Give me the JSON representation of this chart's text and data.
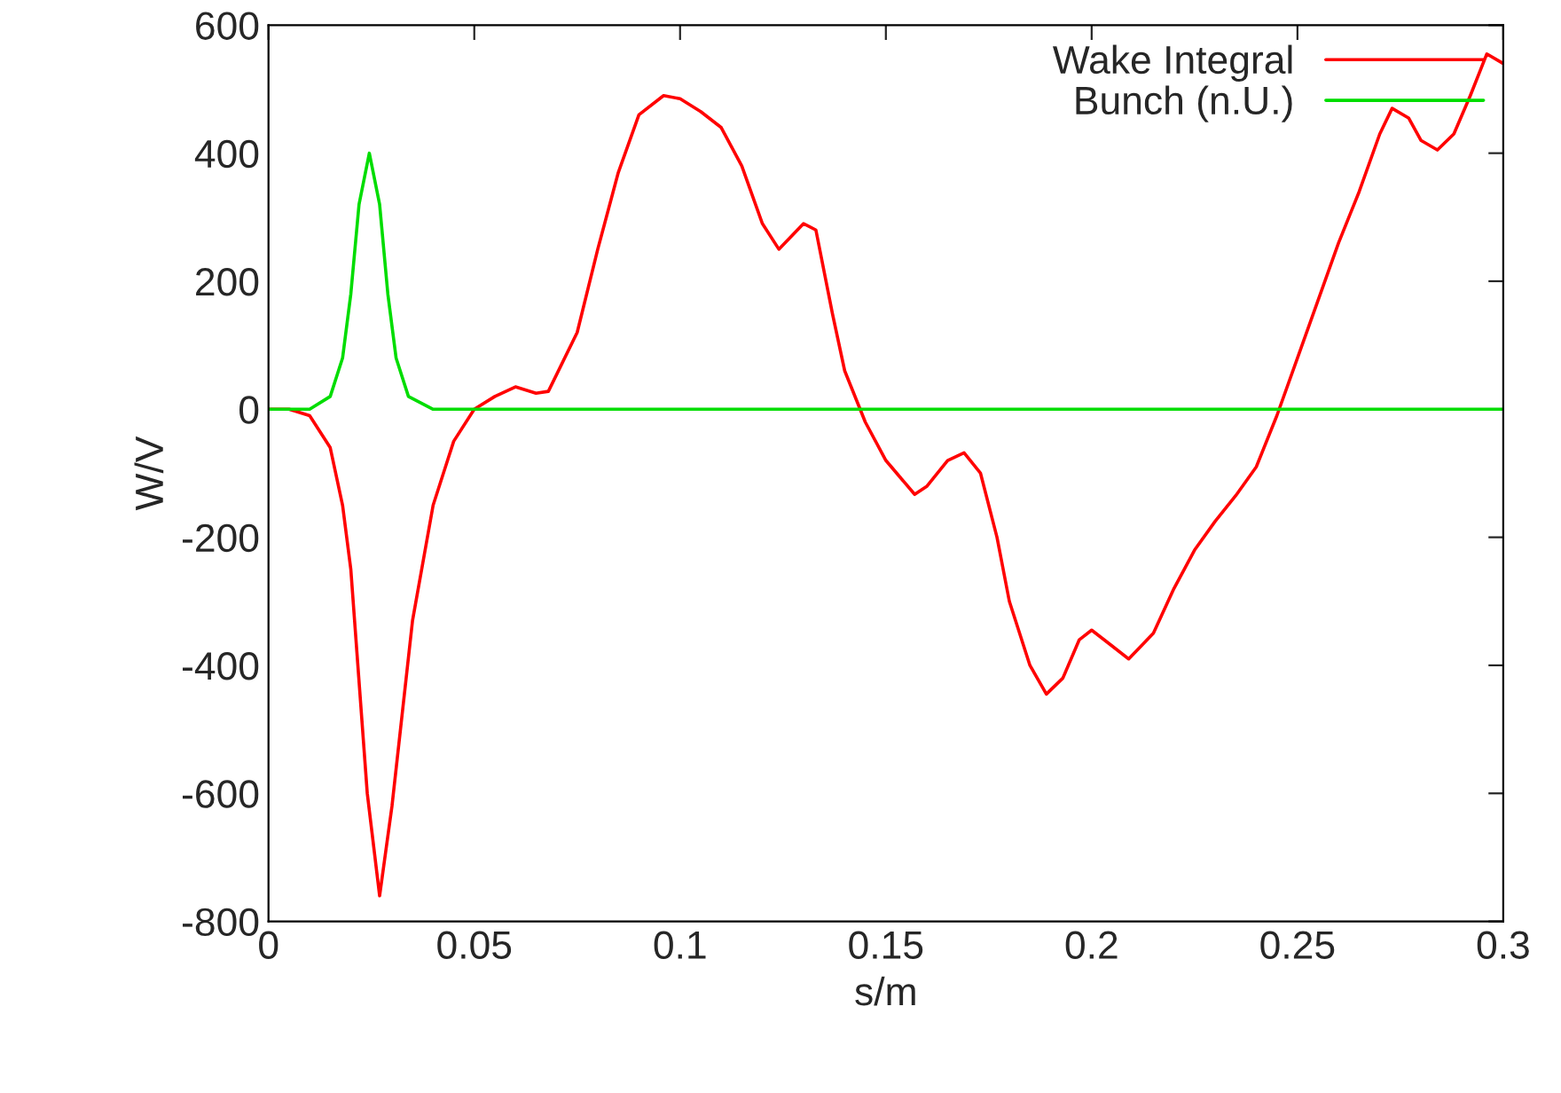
{
  "chart_data": {
    "type": "line",
    "xlabel": "s/m",
    "ylabel": "W/V",
    "xlim": [
      0,
      0.3
    ],
    "xticks": [
      0,
      0.05,
      0.1,
      0.15,
      0.2,
      0.25,
      0.3
    ],
    "ylim": [
      -800,
      600
    ],
    "yticks": [
      -800,
      -600,
      -400,
      -200,
      0,
      200,
      400,
      600
    ],
    "grid": false,
    "legend": "top right",
    "marker": "none",
    "line_style": "solid",
    "series": [
      {
        "name": "Wake Integral",
        "color": "#ff0000",
        "x": [
          0,
          0.005,
          0.01,
          0.015,
          0.018,
          0.02,
          0.024,
          0.027,
          0.03,
          0.035,
          0.04,
          0.045,
          0.05,
          0.055,
          0.06,
          0.065,
          0.068,
          0.075,
          0.08,
          0.085,
          0.09,
          0.096,
          0.1,
          0.105,
          0.11,
          0.115,
          0.12,
          0.124,
          0.13,
          0.133,
          0.137,
          0.14,
          0.145,
          0.15,
          0.157,
          0.16,
          0.165,
          0.169,
          0.173,
          0.177,
          0.18,
          0.185,
          0.189,
          0.193,
          0.197,
          0.2,
          0.205,
          0.209,
          0.215,
          0.22,
          0.225,
          0.23,
          0.235,
          0.24,
          0.245,
          0.25,
          0.255,
          0.26,
          0.265,
          0.27,
          0.273,
          0.277,
          0.28,
          0.284,
          0.288,
          0.292,
          0.296,
          0.3
        ],
        "values": [
          0,
          0,
          -10,
          -60,
          -150,
          -250,
          -600,
          -760,
          -620,
          -330,
          -150,
          -50,
          0,
          20,
          35,
          25,
          28,
          120,
          250,
          370,
          460,
          490,
          485,
          465,
          440,
          380,
          290,
          250,
          290,
          280,
          150,
          60,
          -20,
          -80,
          -133,
          -120,
          -80,
          -68,
          -100,
          -200,
          -300,
          -400,
          -445,
          -420,
          -360,
          -345,
          -370,
          -390,
          -350,
          -280,
          -220,
          -175,
          -135,
          -90,
          -10,
          80,
          170,
          260,
          340,
          430,
          470,
          455,
          420,
          405,
          430,
          490,
          555,
          540
        ]
      },
      {
        "name": "Bunch (n.U.)",
        "color": "#00dd00",
        "x": [
          0,
          0.01,
          0.015,
          0.018,
          0.02,
          0.022,
          0.0245,
          0.027,
          0.029,
          0.031,
          0.034,
          0.04,
          0.3
        ],
        "values": [
          0,
          0,
          20,
          80,
          180,
          320,
          400,
          320,
          180,
          80,
          20,
          0,
          0
        ]
      }
    ]
  }
}
